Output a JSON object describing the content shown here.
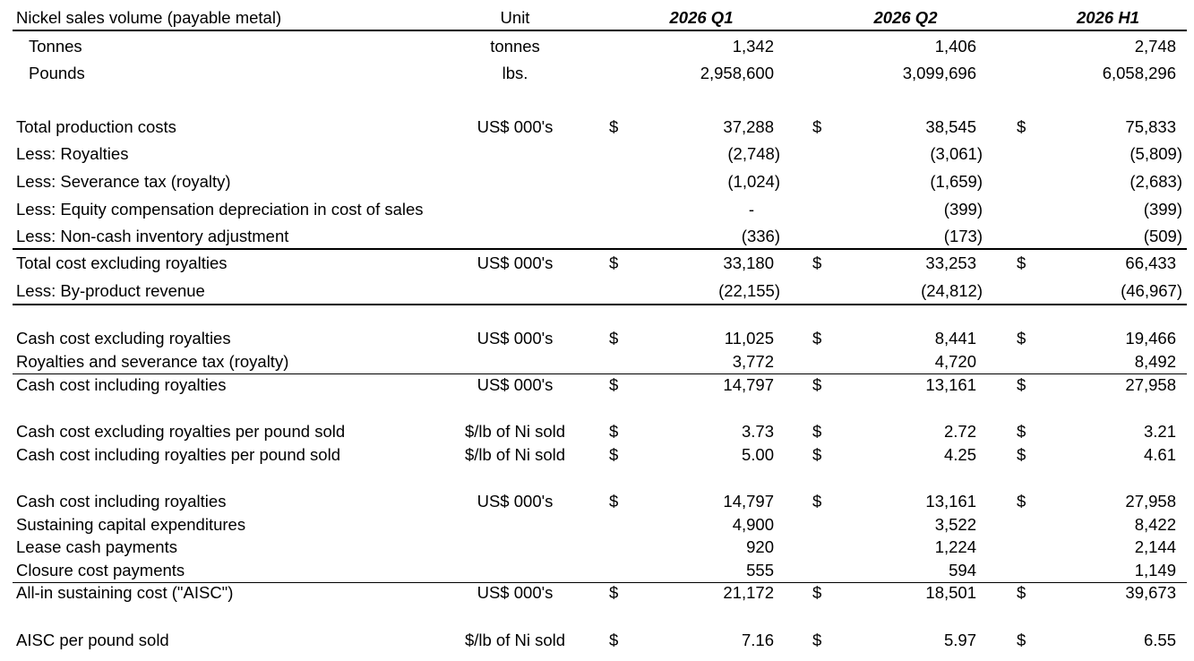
{
  "header": {
    "label": "Nickel sales volume (payable metal)",
    "unit": "Unit",
    "columns": [
      "2026 Q1",
      "2026 Q2",
      "2026 H1"
    ]
  },
  "rows": [
    {
      "label": "Tonnes",
      "unit": "tonnes",
      "values": [
        "1,342",
        "1,406",
        "2,748"
      ]
    },
    {
      "label": "Pounds",
      "unit": "lbs.",
      "values": [
        "2,958,600",
        "3,099,696",
        "6,058,296"
      ]
    },
    {
      "label": "Total production costs",
      "unit": "US$ 000's",
      "currency": "$",
      "values": [
        "37,288",
        "38,545",
        "75,833"
      ]
    },
    {
      "label": "Less: Royalties",
      "values": [
        "(2,748)",
        "(3,061)",
        "(5,809)"
      ]
    },
    {
      "label": "Less: Severance tax (royalty)",
      "values": [
        "(1,024)",
        "(1,659)",
        "(2,683)"
      ]
    },
    {
      "label": "Less: Equity compensation depreciation in cost of sales",
      "values": [
        "-",
        "(399)",
        "(399)"
      ]
    },
    {
      "label": "Less: Non-cash inventory adjustment",
      "values": [
        "(336)",
        "(173)",
        "(509)"
      ]
    },
    {
      "label": "Total cost excluding royalties",
      "unit": "US$ 000's",
      "currency": "$",
      "values": [
        "33,180",
        "33,253",
        "66,433"
      ]
    },
    {
      "label": "Less: By-product revenue",
      "values": [
        "(22,155)",
        "(24,812)",
        "(46,967)"
      ]
    },
    {
      "label": "Cash cost excluding royalties",
      "unit": "US$ 000's",
      "currency": "$",
      "values": [
        "11,025",
        "8,441",
        "19,466"
      ]
    },
    {
      "label": "Royalties and severance tax (royalty)",
      "values": [
        "3,772",
        "4,720",
        "8,492"
      ]
    },
    {
      "label": "Cash cost including royalties",
      "unit": "US$ 000's",
      "currency": "$",
      "values": [
        "14,797",
        "13,161",
        "27,958"
      ]
    },
    {
      "label": "Cash cost excluding royalties per pound sold",
      "unit": "$/lb of Ni sold",
      "currency": "$",
      "values": [
        "3.73",
        "2.72",
        "3.21"
      ]
    },
    {
      "label": "Cash cost including royalties per pound sold",
      "unit": "$/lb of Ni sold",
      "currency": "$",
      "values": [
        "5.00",
        "4.25",
        "4.61"
      ]
    },
    {
      "label": "Cash cost including royalties",
      "unit": "US$ 000's",
      "currency": "$",
      "values": [
        "14,797",
        "13,161",
        "27,958"
      ]
    },
    {
      "label": "Sustaining capital expenditures",
      "values": [
        "4,900",
        "3,522",
        "8,422"
      ]
    },
    {
      "label": "Lease cash payments",
      "values": [
        "920",
        "1,224",
        "2,144"
      ]
    },
    {
      "label": "Closure cost payments",
      "values": [
        "555",
        "594",
        "1,149"
      ]
    },
    {
      "label": "All-in sustaining cost (\"AISC\")",
      "unit": "US$ 000's",
      "currency": "$",
      "values": [
        "21,172",
        "18,501",
        "39,673"
      ]
    },
    {
      "label": "AISC per pound sold",
      "unit": "$/lb of Ni sold",
      "currency": "$",
      "values": [
        "7.16",
        "5.97",
        "6.55"
      ]
    }
  ]
}
